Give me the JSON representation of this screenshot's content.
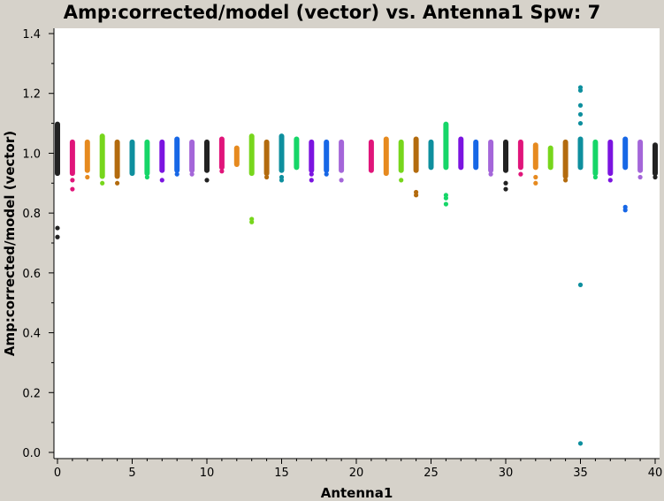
{
  "chart_data": {
    "type": "scatter",
    "title": "Amp:corrected/model (vector) vs. Antenna1 Spw: 7",
    "xlabel": "Antenna1",
    "ylabel": "Amp:corrected/model (vector)",
    "xlim": [
      0,
      40
    ],
    "ylim": [
      0,
      1.45
    ],
    "xticks": [
      0,
      5,
      10,
      15,
      20,
      25,
      30,
      35,
      40
    ],
    "yticks": [
      0.0,
      0.2,
      0.4,
      0.6,
      0.8,
      1.0,
      1.2,
      1.4
    ],
    "ytick_labels": [
      "0.0",
      "0.2",
      "0.4",
      "0.6",
      "0.8",
      "1.0",
      "1.2",
      "1.4"
    ],
    "grid": false,
    "series": [
      {
        "antenna": 0,
        "color": "#222222",
        "band": [
          0.93,
          1.1
        ],
        "outliers": [
          0.72,
          0.75
        ]
      },
      {
        "antenna": 1,
        "color": "#e0157a",
        "band": [
          0.93,
          1.04
        ],
        "outliers": [
          0.88,
          0.91
        ]
      },
      {
        "antenna": 2,
        "color": "#e68a1f",
        "band": [
          0.94,
          1.04
        ],
        "outliers": [
          0.92
        ]
      },
      {
        "antenna": 3,
        "color": "#77d61c",
        "band": [
          0.92,
          1.06
        ],
        "outliers": [
          0.9
        ]
      },
      {
        "antenna": 4,
        "color": "#b36b0e",
        "band": [
          0.92,
          1.04
        ],
        "outliers": [
          0.9
        ]
      },
      {
        "antenna": 5,
        "color": "#0e8f9e",
        "band": [
          0.93,
          1.04
        ],
        "outliers": []
      },
      {
        "antenna": 6,
        "color": "#16d668",
        "band": [
          0.93,
          1.04
        ],
        "outliers": [
          0.92
        ]
      },
      {
        "antenna": 7,
        "color": "#7b14e0",
        "band": [
          0.94,
          1.04
        ],
        "outliers": [
          0.91
        ]
      },
      {
        "antenna": 8,
        "color": "#1767e6",
        "band": [
          0.94,
          1.05
        ],
        "outliers": [
          0.93
        ]
      },
      {
        "antenna": 9,
        "color": "#a466d9",
        "band": [
          0.94,
          1.04
        ],
        "outliers": [
          0.93
        ]
      },
      {
        "antenna": 10,
        "color": "#222222",
        "band": [
          0.94,
          1.04
        ],
        "outliers": [
          0.91
        ]
      },
      {
        "antenna": 11,
        "color": "#e0157a",
        "band": [
          0.95,
          1.05
        ],
        "outliers": [
          0.94
        ]
      },
      {
        "antenna": 12,
        "color": "#e68a1f",
        "band": [
          0.96,
          1.02
        ],
        "outliers": []
      },
      {
        "antenna": 13,
        "color": "#77d61c",
        "band": [
          0.93,
          1.06
        ],
        "outliers": [
          0.77,
          0.78
        ]
      },
      {
        "antenna": 14,
        "color": "#b36b0e",
        "band": [
          0.93,
          1.04
        ],
        "outliers": [
          0.92
        ]
      },
      {
        "antenna": 15,
        "color": "#0e8f9e",
        "band": [
          0.94,
          1.06
        ],
        "outliers": [
          0.91,
          0.92
        ]
      },
      {
        "antenna": 16,
        "color": "#16d668",
        "band": [
          0.95,
          1.05
        ],
        "outliers": []
      },
      {
        "antenna": 17,
        "color": "#7b14e0",
        "band": [
          0.94,
          1.04
        ],
        "outliers": [
          0.91,
          0.93
        ]
      },
      {
        "antenna": 18,
        "color": "#1767e6",
        "band": [
          0.94,
          1.04
        ],
        "outliers": [
          0.93
        ]
      },
      {
        "antenna": 19,
        "color": "#a466d9",
        "band": [
          0.94,
          1.04
        ],
        "outliers": [
          0.91
        ]
      },
      {
        "antenna": 21,
        "color": "#e0157a",
        "band": [
          0.94,
          1.04
        ],
        "outliers": []
      },
      {
        "antenna": 22,
        "color": "#e68a1f",
        "band": [
          0.93,
          1.05
        ],
        "outliers": []
      },
      {
        "antenna": 23,
        "color": "#77d61c",
        "band": [
          0.94,
          1.04
        ],
        "outliers": [
          0.91
        ]
      },
      {
        "antenna": 24,
        "color": "#b36b0e",
        "band": [
          0.94,
          1.05
        ],
        "outliers": [
          0.86,
          0.87
        ]
      },
      {
        "antenna": 25,
        "color": "#0e8f9e",
        "band": [
          0.95,
          1.04
        ],
        "outliers": []
      },
      {
        "antenna": 26,
        "color": "#16d668",
        "band": [
          0.95,
          1.1
        ],
        "outliers": [
          0.83,
          0.85,
          0.86
        ]
      },
      {
        "antenna": 27,
        "color": "#7b14e0",
        "band": [
          0.95,
          1.05
        ],
        "outliers": []
      },
      {
        "antenna": 28,
        "color": "#1767e6",
        "band": [
          0.95,
          1.04
        ],
        "outliers": []
      },
      {
        "antenna": 29,
        "color": "#a466d9",
        "band": [
          0.94,
          1.04
        ],
        "outliers": [
          0.93
        ]
      },
      {
        "antenna": 30,
        "color": "#222222",
        "band": [
          0.94,
          1.04
        ],
        "outliers": [
          0.88,
          0.9
        ]
      },
      {
        "antenna": 31,
        "color": "#e0157a",
        "band": [
          0.95,
          1.04
        ],
        "outliers": [
          0.93
        ]
      },
      {
        "antenna": 32,
        "color": "#e68a1f",
        "band": [
          0.95,
          1.03
        ],
        "outliers": [
          0.9,
          0.92
        ]
      },
      {
        "antenna": 33,
        "color": "#77d61c",
        "band": [
          0.95,
          1.02
        ],
        "outliers": []
      },
      {
        "antenna": 34,
        "color": "#b36b0e",
        "band": [
          0.92,
          1.04
        ],
        "outliers": [
          0.91
        ]
      },
      {
        "antenna": 35,
        "color": "#0e8f9e",
        "band": [
          0.95,
          1.05
        ],
        "outliers": [
          0.03,
          0.56,
          1.1,
          1.13,
          1.16,
          1.21,
          1.22
        ]
      },
      {
        "antenna": 36,
        "color": "#16d668",
        "band": [
          0.93,
          1.04
        ],
        "outliers": [
          0.92
        ]
      },
      {
        "antenna": 37,
        "color": "#7b14e0",
        "band": [
          0.93,
          1.04
        ],
        "outliers": [
          0.91
        ]
      },
      {
        "antenna": 38,
        "color": "#1767e6",
        "band": [
          0.95,
          1.05
        ],
        "outliers": [
          0.81,
          0.82
        ]
      },
      {
        "antenna": 39,
        "color": "#a466d9",
        "band": [
          0.94,
          1.04
        ],
        "outliers": [
          0.92
        ]
      },
      {
        "antenna": 40,
        "color": "#222222",
        "band": [
          0.93,
          1.03
        ],
        "outliers": [
          0.92
        ]
      }
    ]
  },
  "colors": {
    "background": "#d6d2ca",
    "plot_area": "#ffffff",
    "axis": "#000000"
  }
}
